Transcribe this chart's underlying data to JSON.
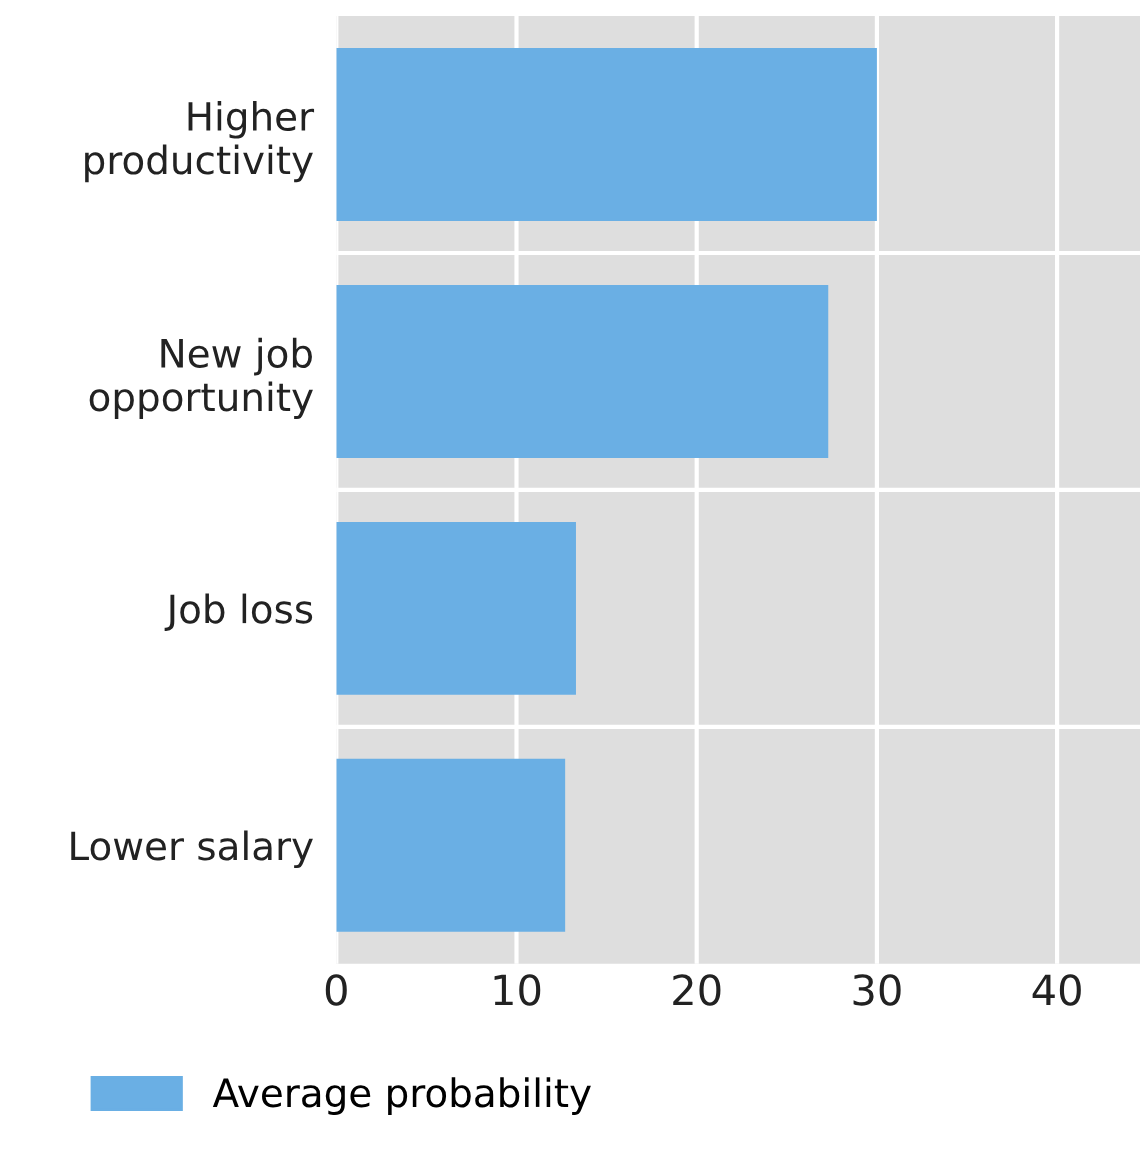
{
  "chart_data": {
    "type": "bar",
    "orientation": "horizontal",
    "categories": [
      "Higher\nproductivity",
      "New job\nopportunity",
      "Job loss",
      "Lower salary"
    ],
    "series": [
      {
        "name": "Average probability",
        "color": "#6aafe4",
        "values": [
          30,
          27.3,
          13.3,
          12.7
        ]
      }
    ],
    "xlim": [
      0,
      44.6
    ],
    "xticks": [
      0,
      10,
      20,
      30,
      40
    ],
    "grid": true,
    "legend": "bottom left"
  }
}
